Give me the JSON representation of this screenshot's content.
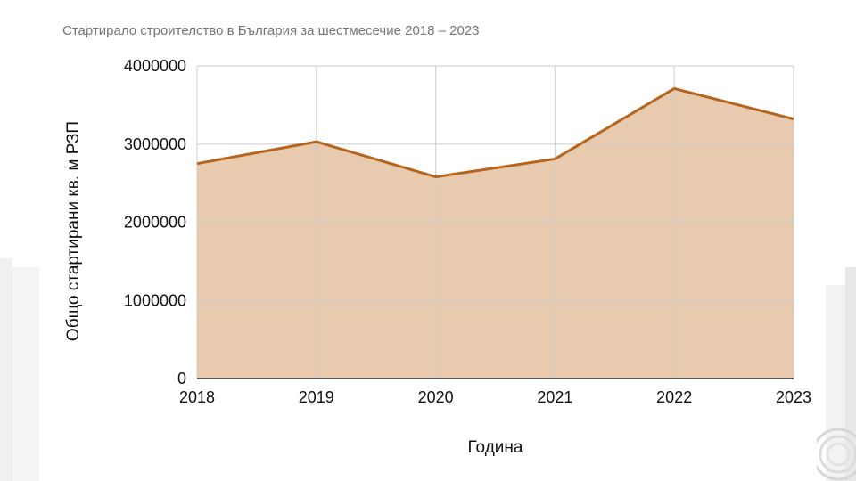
{
  "chart_data": {
    "type": "area",
    "title": "Стартирало строителство в България за шестмесечие 2018 – 2023",
    "xlabel": "Година",
    "ylabel": "Общо стартирани кв. м РЗП",
    "x": [
      "2018",
      "2019",
      "2020",
      "2021",
      "2022",
      "2023"
    ],
    "y_ticks": [
      "0",
      "1000000",
      "2000000",
      "3000000",
      "4000000"
    ],
    "ylim": [
      0,
      4000000
    ],
    "series": [
      {
        "values": [
          2750000,
          3030000,
          2580000,
          2810000,
          3710000,
          3320000
        ]
      }
    ],
    "grid": true,
    "colors": {
      "line": "#b5651d",
      "fill": "#e8cbae",
      "grid": "#cccccc"
    }
  }
}
